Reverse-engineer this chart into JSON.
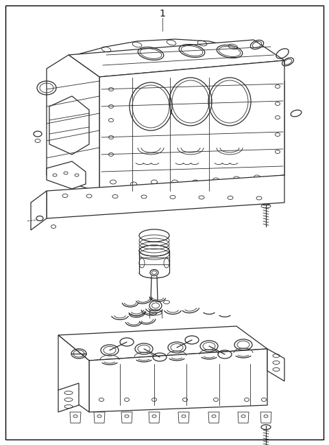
{
  "background_color": "#ffffff",
  "border_color": "#000000",
  "line_color": "#2a2a2a",
  "label_number": "1",
  "fig_width": 4.8,
  "fig_height": 6.48,
  "dpi": 100,
  "border_lw": 1.0
}
